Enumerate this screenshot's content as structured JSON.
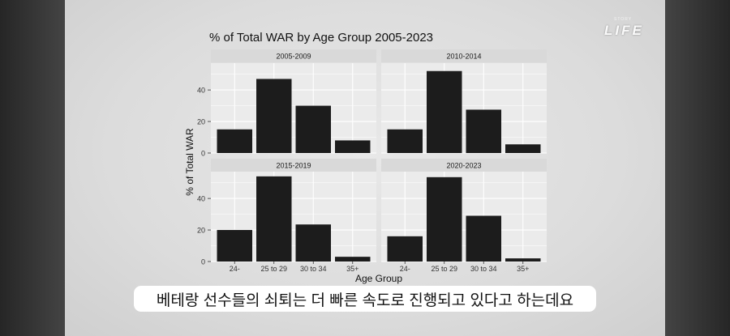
{
  "video": {
    "logo": "LIFE",
    "logo_small": "STORY",
    "caption": "베테랑 선수들의 쇠퇴는 더 빠른 속도로 진행되고 있다고 하는데요"
  },
  "chart_data": {
    "type": "bar",
    "title": "% of Total WAR by Age Group 2005-2023",
    "xlabel": "Age Group",
    "ylabel": "% of Total WAR",
    "categories": [
      "24-",
      "25 to 29",
      "30 to 34",
      "35+"
    ],
    "ylim": [
      0,
      57
    ],
    "yticks": [
      0,
      20,
      40
    ],
    "grid": true,
    "facets": [
      {
        "label": "2005-2009",
        "values": [
          15,
          47,
          30,
          8
        ]
      },
      {
        "label": "2010-2014",
        "values": [
          15,
          52,
          27.5,
          5.5
        ]
      },
      {
        "label": "2015-2019",
        "values": [
          20,
          54,
          23.5,
          3
        ]
      },
      {
        "label": "2020-2023",
        "values": [
          16,
          53.5,
          29,
          2
        ]
      }
    ],
    "colors": {
      "bar": "#1c1c1c",
      "panel": "#ebebeb",
      "strip": "#d9d9d9",
      "grid": "#ffffff"
    }
  }
}
